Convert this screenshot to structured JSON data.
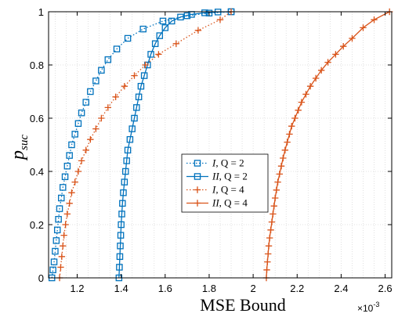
{
  "chart_data": {
    "type": "line",
    "title": "",
    "xlabel": "MSE Bound",
    "ylabel": {
      "main": "p",
      "sub": "suc"
    },
    "x_exponent": {
      "base": "×10",
      "power": "-3"
    },
    "xlim": [
      1.07,
      2.63
    ],
    "ylim": [
      0,
      1
    ],
    "grid": true,
    "legend_position": "center",
    "x_ticks": [
      1.2,
      1.4,
      1.6,
      1.8,
      2,
      2.2,
      2.4,
      2.6
    ],
    "x_tick_labels": [
      "1.2",
      "1.4",
      "1.6",
      "1.8",
      "2",
      "2.2",
      "2.4",
      "2.6"
    ],
    "y_ticks": [
      0,
      0.2,
      0.4,
      0.6,
      0.8,
      1
    ],
    "y_tick_labels": [
      "0",
      "0.2",
      "0.4",
      "0.6",
      "0.8",
      "1"
    ],
    "series": [
      {
        "name": "I, Q = 2",
        "legend": {
          "var": "I",
          "rest": ", Q = 2"
        },
        "color": "#0072BD",
        "line_style": "dotted",
        "marker": "square",
        "x": [
          1.085,
          1.09,
          1.095,
          1.1,
          1.105,
          1.11,
          1.115,
          1.12,
          1.128,
          1.135,
          1.145,
          1.155,
          1.165,
          1.175,
          1.19,
          1.205,
          1.22,
          1.24,
          1.26,
          1.285,
          1.31,
          1.34,
          1.38,
          1.43,
          1.5,
          1.59,
          1.7,
          1.8,
          1.9
        ],
        "y": [
          0.0,
          0.03,
          0.06,
          0.1,
          0.14,
          0.18,
          0.22,
          0.26,
          0.3,
          0.34,
          0.38,
          0.42,
          0.46,
          0.5,
          0.54,
          0.58,
          0.62,
          0.66,
          0.7,
          0.74,
          0.78,
          0.82,
          0.86,
          0.9,
          0.935,
          0.965,
          0.985,
          0.995,
          1.0
        ]
      },
      {
        "name": "II, Q = 2",
        "legend": {
          "var": "II",
          "rest": ", Q = 2"
        },
        "color": "#0072BD",
        "line_style": "solid",
        "marker": "square",
        "x": [
          1.39,
          1.392,
          1.394,
          1.396,
          1.398,
          1.4,
          1.403,
          1.406,
          1.41,
          1.415,
          1.42,
          1.425,
          1.43,
          1.44,
          1.45,
          1.46,
          1.47,
          1.48,
          1.49,
          1.505,
          1.52,
          1.535,
          1.555,
          1.575,
          1.6,
          1.63,
          1.67,
          1.72,
          1.78,
          1.84,
          1.9
        ],
        "y": [
          0.0,
          0.04,
          0.08,
          0.12,
          0.16,
          0.2,
          0.24,
          0.28,
          0.32,
          0.36,
          0.4,
          0.44,
          0.48,
          0.52,
          0.56,
          0.6,
          0.64,
          0.68,
          0.72,
          0.76,
          0.8,
          0.84,
          0.88,
          0.91,
          0.94,
          0.965,
          0.98,
          0.99,
          0.996,
          0.999,
          1.0
        ]
      },
      {
        "name": "I, Q = 4",
        "legend": {
          "var": "I",
          "rest": ", Q = 4"
        },
        "color": "#D95319",
        "line_style": "dotted",
        "marker": "plus",
        "x": [
          1.12,
          1.125,
          1.13,
          1.135,
          1.14,
          1.147,
          1.155,
          1.165,
          1.175,
          1.19,
          1.205,
          1.22,
          1.24,
          1.26,
          1.285,
          1.31,
          1.34,
          1.375,
          1.415,
          1.46,
          1.51,
          1.57,
          1.65,
          1.75,
          1.85,
          1.9
        ],
        "y": [
          0.0,
          0.04,
          0.08,
          0.12,
          0.16,
          0.2,
          0.24,
          0.28,
          0.32,
          0.36,
          0.4,
          0.44,
          0.48,
          0.52,
          0.56,
          0.6,
          0.64,
          0.68,
          0.72,
          0.76,
          0.8,
          0.84,
          0.88,
          0.93,
          0.97,
          1.0
        ]
      },
      {
        "name": "II, Q = 4",
        "legend": {
          "var": "II",
          "rest": ", Q = 4"
        },
        "color": "#D95319",
        "line_style": "solid",
        "marker": "plus",
        "x": [
          2.06,
          2.062,
          2.065,
          2.068,
          2.071,
          2.075,
          2.08,
          2.085,
          2.09,
          2.095,
          2.1,
          2.106,
          2.112,
          2.12,
          2.128,
          2.136,
          2.145,
          2.155,
          2.165,
          2.175,
          2.19,
          2.205,
          2.22,
          2.24,
          2.26,
          2.285,
          2.31,
          2.34,
          2.375,
          2.41,
          2.45,
          2.5,
          2.55,
          2.62
        ],
        "y": [
          0.0,
          0.03,
          0.06,
          0.09,
          0.12,
          0.15,
          0.18,
          0.21,
          0.24,
          0.27,
          0.3,
          0.33,
          0.36,
          0.39,
          0.42,
          0.45,
          0.48,
          0.51,
          0.54,
          0.57,
          0.6,
          0.63,
          0.66,
          0.69,
          0.72,
          0.75,
          0.78,
          0.81,
          0.84,
          0.87,
          0.9,
          0.94,
          0.97,
          1.0
        ]
      }
    ]
  }
}
